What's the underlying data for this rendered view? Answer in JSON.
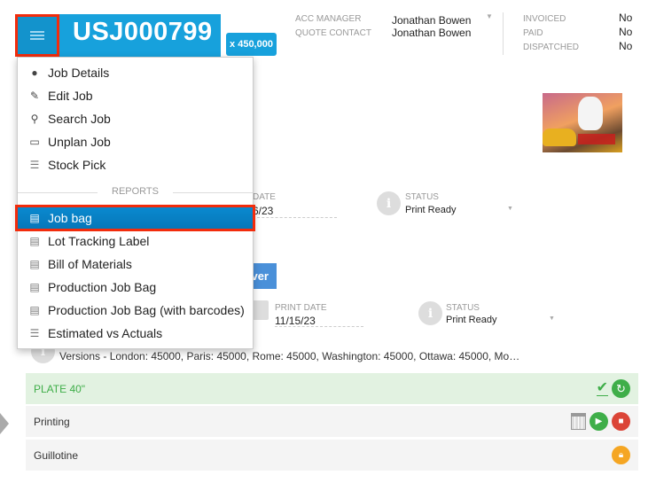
{
  "header": {
    "job_number": "USJ000799",
    "quantity": "x 450,000"
  },
  "people": {
    "acc_manager_label": "ACC MANAGER",
    "acc_manager": "Jonathan Bowen",
    "quote_contact_label": "QUOTE CONTACT",
    "quote_contact": "Jonathan Bowen"
  },
  "flags": {
    "invoiced_label": "INVOICED",
    "invoiced": "No",
    "paid_label": "PAID",
    "paid": "No",
    "dispatched_label": "DISPATCHED",
    "dispatched": "No"
  },
  "menu": {
    "items": [
      {
        "label": "Job Details",
        "icon": "info-circle-icon"
      },
      {
        "label": "Edit Job",
        "icon": "edit-icon"
      },
      {
        "label": "Search Job",
        "icon": "search-icon"
      },
      {
        "label": "Unplan Job",
        "icon": "calendar-icon"
      },
      {
        "label": "Stock Pick",
        "icon": "stack-icon"
      }
    ],
    "section_label": "REPORTS",
    "reports": [
      {
        "label": "Job bag",
        "icon": "report-icon",
        "selected": true
      },
      {
        "label": "Lot Tracking Label",
        "icon": "report-icon"
      },
      {
        "label": "Bill of Materials",
        "icon": "report-icon"
      },
      {
        "label": "Production Job Bag",
        "icon": "report-icon"
      },
      {
        "label": "Production Job Bag (with barcodes)",
        "icon": "report-icon"
      },
      {
        "label": "Estimated vs Actuals",
        "icon": "stack-icon"
      }
    ]
  },
  "background": {
    "date1_label": "DATE",
    "date1_value": "6/23",
    "status1_label": "STATUS",
    "status1_value": "Print Ready",
    "button_partial": "ver",
    "print_date_label": "PRINT DATE",
    "print_date": "11/15/23",
    "status2_label": "STATUS",
    "status2_value": "Print Ready",
    "versions": "Versions - London: 45000, Paris: 45000, Rome: 45000, Washington: 45000, Ottawa: 45000, Mo…"
  },
  "operations": [
    {
      "name": "PLATE 40\"",
      "state": "complete"
    },
    {
      "name": "Printing",
      "state": "active"
    },
    {
      "name": "Guillotine",
      "state": "locked"
    }
  ],
  "colors": {
    "brand": "#17a1dc",
    "selected": "#0a8ad0",
    "highlight": "#f22c0c",
    "complete_bg": "#e2f2e1",
    "green": "#3fae49",
    "red": "#db4437",
    "orange": "#f5a623"
  }
}
